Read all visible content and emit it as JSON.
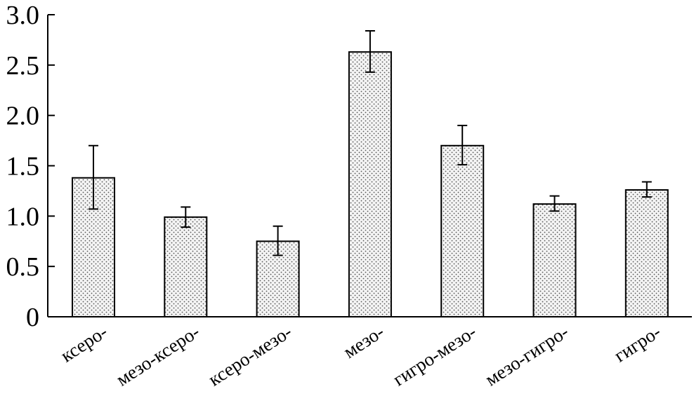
{
  "chart_data": {
    "type": "bar",
    "title": "",
    "xlabel": "",
    "ylabel": "",
    "categories": [
      "ксеро-",
      "мезо-ксеро-",
      "ксеро-мезо-",
      "мезо-",
      "гигро-мезо-",
      "мезо-гигро-",
      "гигро-"
    ],
    "values": [
      1.38,
      0.99,
      0.75,
      2.63,
      1.7,
      1.12,
      1.26
    ],
    "error_high": [
      1.7,
      1.09,
      0.9,
      2.84,
      1.9,
      1.2,
      1.34
    ],
    "error_low": [
      1.07,
      0.89,
      0.61,
      2.43,
      1.51,
      1.05,
      1.19
    ],
    "ylim": [
      0,
      3.0
    ],
    "yticks": [
      "0",
      "0.5",
      "1.0",
      "1.5",
      "2.0",
      "2.5",
      "3.0"
    ],
    "grid": false,
    "legend": "none",
    "bar_fill": "stippled-gray",
    "colors": {
      "bar_outline": "#000000",
      "dots": "#555555",
      "axis": "#000000"
    }
  }
}
